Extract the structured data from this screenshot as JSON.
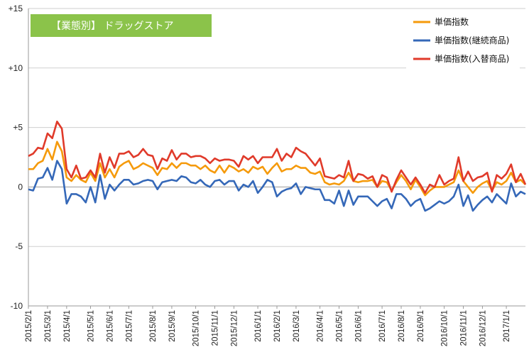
{
  "chart_data": {
    "type": "line",
    "title": "【業態別】 ドラッグストア",
    "title_box_color": "#8BC34A",
    "ylim": [
      -10,
      15
    ],
    "y_ticks": [
      {
        "value": 15,
        "label": "+15"
      },
      {
        "value": 10,
        "label": "+10"
      },
      {
        "value": 5,
        "label": "+5"
      },
      {
        "value": 0,
        "label": "0"
      },
      {
        "value": -5,
        "label": "-5"
      },
      {
        "value": -10,
        "label": "-10"
      }
    ],
    "grid": true,
    "legend_position": "top-right",
    "x_start": "2015/2/1",
    "x_step": "weekly",
    "x_tick_labels": [
      "2015/2/1",
      "2015/3/1",
      "2015/4/1",
      "2015/5/1",
      "2015/6/1",
      "2015/7/1",
      "2015/8/1",
      "2015/9/1",
      "2015/10/1",
      "2015/11/1",
      "2015/12/1",
      "2016/1/1",
      "2016/2/1",
      "2016/3/1",
      "2016/4/1",
      "2016/5/1",
      "2016/6/1",
      "2016/7/1",
      "2016/8/1",
      "2016/9/1",
      "2016/10/1",
      "2016/11/1",
      "2016/12/1",
      "2017/1/1"
    ],
    "x_tick_weeks": [
      0,
      4,
      8,
      13,
      17,
      21,
      26,
      30,
      35,
      39,
      43,
      48,
      52,
      56,
      61,
      65,
      69,
      74,
      78,
      82,
      87,
      91,
      95,
      100
    ],
    "series": [
      {
        "name": "単価指数",
        "color": "#F59A0B",
        "values": [
          1.5,
          1.5,
          2.0,
          2.2,
          3.2,
          2.3,
          3.8,
          3.0,
          0.8,
          0.5,
          1.0,
          0.6,
          0.4,
          1.2,
          0.5,
          2.0,
          0.8,
          1.5,
          0.8,
          1.7,
          2.0,
          2.2,
          1.5,
          1.7,
          2.0,
          1.8,
          1.6,
          1.0,
          1.6,
          1.5,
          2.0,
          1.6,
          2.0,
          2.0,
          1.8,
          1.8,
          1.5,
          1.8,
          1.4,
          1.2,
          1.8,
          1.2,
          1.8,
          1.6,
          1.3,
          1.5,
          1.2,
          1.7,
          1.5,
          1.7,
          1.1,
          1.6,
          2.0,
          1.3,
          1.5,
          1.5,
          1.8,
          1.6,
          1.6,
          1.2,
          1.1,
          1.3,
          0.4,
          0.2,
          0.3,
          0.2,
          0.5,
          1.2,
          0.5,
          0.4,
          0.5,
          0.5,
          0.6,
          0.0,
          0.5,
          0.4,
          -0.3,
          0.4,
          1.0,
          0.5,
          -0.2,
          0.6,
          0.0,
          -0.7,
          -0.3,
          0.0,
          0.0,
          0.0,
          0.2,
          0.4,
          1.4,
          0.5,
          0.0,
          -0.5,
          0.0,
          0.3,
          0.5,
          -0.3,
          0.4,
          0.2,
          0.5,
          1.2,
          0.4,
          0.6,
          0.2
        ],
        "name_bind": "legend_items.0"
      },
      {
        "name": "単価指数(継続商品)",
        "color": "#3568B8",
        "values": [
          -0.2,
          -0.3,
          0.7,
          0.8,
          1.6,
          0.6,
          2.2,
          1.5,
          -1.4,
          -0.6,
          -0.6,
          -0.8,
          -1.3,
          0.0,
          -1.3,
          1.0,
          -1.0,
          0.2,
          -0.3,
          0.2,
          0.6,
          0.6,
          0.2,
          0.3,
          0.5,
          0.6,
          0.5,
          -0.2,
          0.4,
          0.5,
          0.6,
          0.5,
          0.9,
          0.8,
          0.4,
          0.3,
          0.6,
          0.2,
          0.0,
          0.5,
          0.6,
          0.2,
          0.5,
          0.5,
          -0.3,
          0.2,
          0.0,
          0.5,
          -0.5,
          0.0,
          0.6,
          0.4,
          -0.8,
          -0.4,
          -0.2,
          -0.1,
          0.3,
          -0.6,
          0.0,
          -0.1,
          -0.2,
          -0.2,
          -1.1,
          -1.1,
          -1.4,
          -0.3,
          -1.6,
          -0.3,
          -1.5,
          -0.8,
          -0.8,
          -0.8,
          -1.2,
          -1.6,
          -1.2,
          -1.0,
          -1.8,
          -0.6,
          -0.6,
          -1.0,
          -1.6,
          -1.2,
          -1.0,
          -2.0,
          -1.8,
          -1.5,
          -1.2,
          -1.4,
          -1.2,
          -0.8,
          0.2,
          -1.6,
          -0.7,
          -2.0,
          -1.5,
          -1.1,
          -0.8,
          -1.3,
          -0.6,
          -1.0,
          -1.4,
          0.3,
          -0.8,
          -0.4,
          -0.6
        ],
        "name_bind": "legend_items.1"
      },
      {
        "name": "単価指数(入替商品)",
        "color": "#E03A2A",
        "values": [
          2.6,
          2.8,
          3.3,
          3.2,
          4.5,
          4.1,
          5.5,
          4.9,
          1.5,
          0.8,
          1.8,
          0.7,
          0.8,
          1.4,
          0.8,
          2.8,
          1.2,
          2.5,
          1.6,
          2.8,
          2.8,
          3.0,
          2.5,
          2.7,
          3.2,
          2.7,
          2.6,
          1.5,
          2.4,
          2.2,
          3.1,
          2.3,
          2.8,
          2.8,
          2.5,
          2.6,
          2.6,
          2.4,
          2.0,
          2.4,
          2.2,
          2.3,
          2.3,
          2.2,
          1.7,
          2.6,
          2.3,
          2.6,
          2.0,
          2.5,
          2.5,
          2.5,
          3.2,
          2.2,
          2.8,
          2.5,
          3.3,
          3.0,
          2.8,
          2.3,
          1.8,
          2.4,
          0.9,
          0.8,
          0.7,
          1.0,
          0.8,
          2.2,
          0.5,
          1.1,
          1.0,
          0.7,
          0.9,
          0.0,
          1.0,
          0.8,
          -0.4,
          0.6,
          1.4,
          0.8,
          0.2,
          0.8,
          0.2,
          -0.5,
          0.2,
          0.0,
          1.0,
          0.2,
          0.5,
          0.7,
          2.5,
          0.5,
          1.3,
          0.5,
          0.8,
          0.9,
          1.2,
          -0.4,
          1.0,
          0.7,
          1.1,
          1.9,
          0.4,
          1.1,
          0.2
        ],
        "name_bind": "legend_items.2"
      }
    ]
  },
  "legend_items": [
    "単価指数",
    "単価指数(継続商品)",
    "単価指数(入替商品)"
  ]
}
